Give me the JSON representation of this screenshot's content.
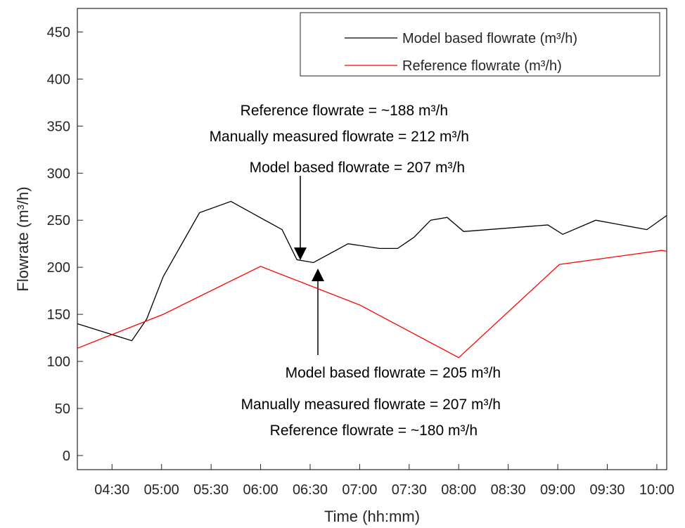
{
  "chart_data": {
    "type": "line",
    "x_label": "Time (hh:mm)",
    "y_label": "Flowrate (m³/h)",
    "xlim": [
      "04:09",
      "10:06"
    ],
    "xticks": [
      "04:30",
      "05:00",
      "05:30",
      "06:00",
      "06:30",
      "07:00",
      "07:30",
      "08:00",
      "08:30",
      "09:00",
      "09:30",
      "10:00"
    ],
    "ylim": [
      -15,
      475
    ],
    "yticks": [
      0,
      50,
      100,
      150,
      200,
      250,
      300,
      350,
      400,
      450
    ],
    "grid": false,
    "legend_position": "top-right",
    "series": [
      {
        "name": "Model based flowrate (m³/h)",
        "color": "#000000",
        "x": [
          "04:09",
          "04:42",
          "04:51",
          "05:01",
          "05:23",
          "05:42",
          "06:13",
          "06:22",
          "06:32",
          "06:53",
          "07:12",
          "07:23",
          "07:33",
          "07:43",
          "07:53",
          "08:03",
          "08:54",
          "09:03",
          "09:23",
          "09:54",
          "10:06"
        ],
        "values": [
          140,
          122,
          145,
          190,
          258,
          270,
          240,
          208,
          205,
          225,
          220,
          220,
          232,
          250,
          253,
          238,
          245,
          235,
          250,
          240,
          255
        ]
      },
      {
        "name": "Reference flowrate (m³/h)",
        "color": "#ff0000",
        "x": [
          "04:09",
          "05:01",
          "06:00",
          "07:00",
          "08:00",
          "09:01",
          "10:03",
          "10:06"
        ],
        "values": [
          114,
          150,
          201,
          160,
          104,
          203,
          218,
          217
        ]
      }
    ],
    "annotations": [
      "Reference flowrate = ~188 m³/h",
      "Manually measured flowrate = 212 m³/h",
      "Model based flowrate = 207 m³/h",
      "Model based flowrate = 205 m³/h",
      "Manually measured flowrate = 207 m³/h",
      "Reference flowrate = ~180 m³/h"
    ]
  }
}
